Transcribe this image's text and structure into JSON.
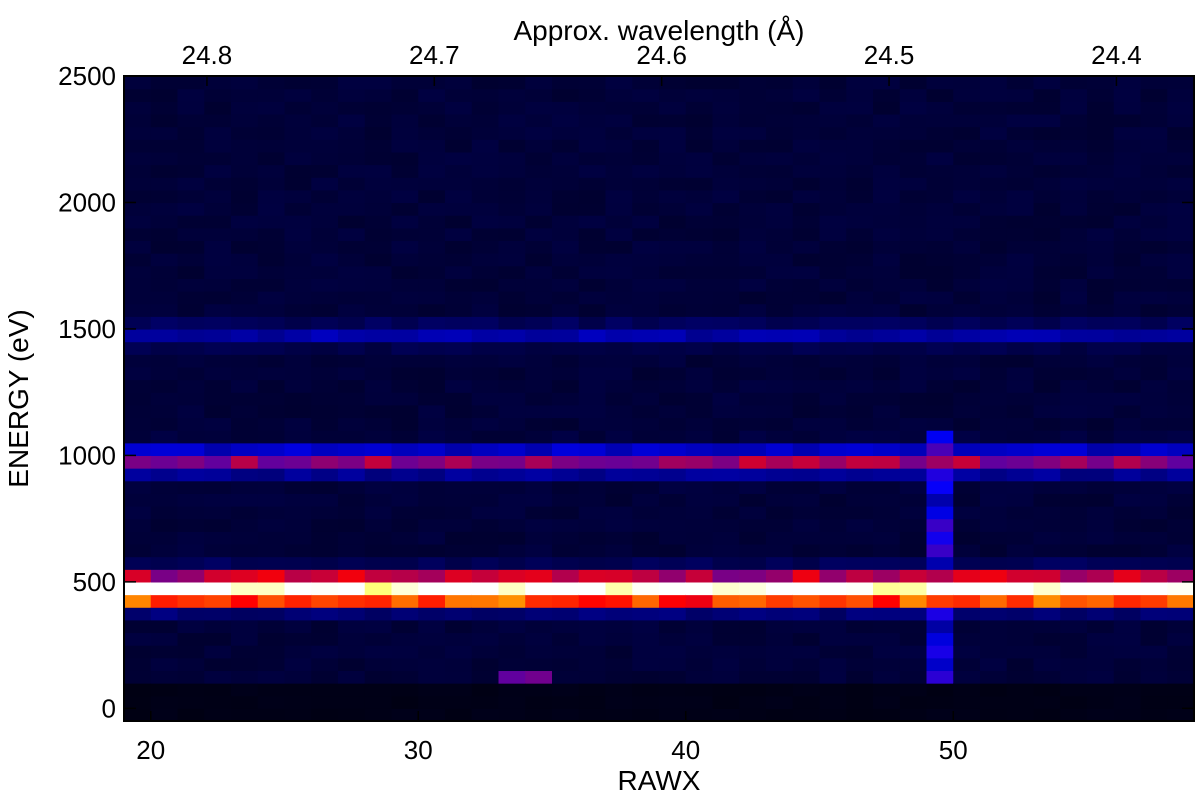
{
  "chart_data": {
    "type": "heatmap",
    "title": "",
    "xlabel": "RAWX",
    "ylabel": "ENERGY (eV)",
    "x2label": "Approx. wavelength (Å)",
    "xlim": [
      19,
      59
    ],
    "ylim": [
      -50,
      2500
    ],
    "xticks": [
      20,
      30,
      40,
      50
    ],
    "yticks": [
      0,
      500,
      1000,
      1500,
      2000,
      2500
    ],
    "x2ticks": [
      {
        "label": "24.8",
        "rawx": 22.1
      },
      {
        "label": "24.7",
        "rawx": 30.6
      },
      {
        "label": "24.6",
        "rawx": 39.1
      },
      {
        "label": "24.5",
        "rawx": 47.6
      },
      {
        "label": "24.4",
        "rawx": 56.1
      }
    ],
    "grid": false,
    "colormap": "black-blue-red-yellow-white",
    "x_bins": {
      "start": 19,
      "step": 1,
      "count": 40
    },
    "y_bins": {
      "start": -50,
      "step": 50,
      "count": 51
    },
    "bands": [
      {
        "energy": 470,
        "width": 55,
        "intensity": 1.0
      },
      {
        "energy": 980,
        "width": 45,
        "intensity": 0.34
      },
      {
        "energy": 1480,
        "width": 40,
        "intensity": 0.1
      }
    ],
    "low_energy_floor": {
      "max_energy": 100,
      "intensity": 0.02
    },
    "background_intensity": 0.05,
    "features": [
      {
        "note": "weak column",
        "rawx": 49.5,
        "energy_range": [
          100,
          1100
        ],
        "intensity": 0.28
      },
      {
        "note": "hot pixel",
        "rawx": 34,
        "energy": 125,
        "intensity": 0.38
      }
    ]
  }
}
